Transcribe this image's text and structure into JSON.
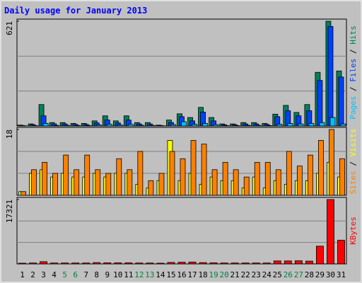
{
  "chart_data": [
    {
      "type": "bar",
      "title": "Daily usage for January 2013",
      "ylim": [
        0,
        621
      ],
      "yticks": [
        621
      ],
      "series": [
        {
          "name": "Hits",
          "color": "#00805c",
          "values": [
            5,
            12,
            127,
            20,
            20,
            15,
            15,
            30,
            60,
            30,
            60,
            20,
            20,
            5,
            35,
            72,
            50,
            110,
            50,
            12,
            12,
            20,
            20,
            15,
            70,
            122,
            80,
            127,
            318,
            621,
            326
          ]
        },
        {
          "name": "Files",
          "color": "#0040ff",
          "values": [
            3,
            8,
            60,
            12,
            12,
            9,
            9,
            18,
            35,
            18,
            35,
            12,
            12,
            3,
            20,
            55,
            30,
            82,
            30,
            7,
            7,
            12,
            12,
            9,
            55,
            90,
            60,
            90,
            270,
            590,
            290
          ]
        },
        {
          "name": "Pages",
          "color": "#00c0ff",
          "values": [
            1,
            2,
            15,
            3,
            4,
            3,
            3,
            6,
            10,
            6,
            10,
            4,
            4,
            1,
            8,
            25,
            10,
            15,
            8,
            2,
            2,
            4,
            4,
            3,
            10,
            15,
            12,
            15,
            20,
            50,
            12
          ]
        }
      ]
    },
    {
      "type": "bar",
      "ylim": [
        0,
        18
      ],
      "yticks": [
        18
      ],
      "series": [
        {
          "name": "Visits",
          "color": "#ffff00",
          "values": [
            1,
            6,
            7,
            5,
            6,
            5,
            5,
            6,
            5,
            6,
            6,
            3,
            2,
            4,
            15,
            4,
            6,
            3,
            5,
            4,
            4,
            2,
            5,
            2,
            4,
            3,
            4,
            4,
            6,
            9,
            5
          ]
        },
        {
          "name": "Sites",
          "color": "#ff8000",
          "values": [
            1,
            7,
            9,
            6,
            11,
            7,
            11,
            7,
            6,
            10,
            7,
            12,
            4,
            6,
            12,
            10,
            15,
            14,
            7,
            9,
            7,
            5,
            9,
            9,
            7,
            12,
            8,
            11,
            15,
            18,
            10
          ]
        }
      ]
    },
    {
      "type": "bar",
      "ylim": [
        0,
        17321
      ],
      "yticks": [
        17321
      ],
      "categories": [
        "1",
        "2",
        "3",
        "4",
        "5",
        "6",
        "7",
        "8",
        "9",
        "10",
        "11",
        "12",
        "13",
        "14",
        "15",
        "16",
        "17",
        "18",
        "19",
        "20",
        "21",
        "22",
        "23",
        "24",
        "25",
        "26",
        "27",
        "28",
        "29",
        "30",
        "31"
      ],
      "category_colors": [
        "#000000",
        "#000000",
        "#000000",
        "#000000",
        "#008040",
        "#008040",
        "#000000",
        "#000000",
        "#000000",
        "#000000",
        "#000000",
        "#008040",
        "#008040",
        "#000000",
        "#000000",
        "#000000",
        "#000000",
        "#000000",
        "#008040",
        "#008040",
        "#000000",
        "#000000",
        "#000000",
        "#000000",
        "#000000",
        "#008040",
        "#008040",
        "#000000",
        "#000000",
        "#000000",
        "#000000"
      ],
      "series": [
        {
          "name": "KBytes",
          "color": "#ff0000",
          "values": [
            200,
            250,
            600,
            250,
            250,
            250,
            250,
            350,
            300,
            300,
            300,
            250,
            250,
            200,
            400,
            450,
            500,
            350,
            300,
            250,
            250,
            250,
            250,
            250,
            800,
            800,
            850,
            750,
            4780,
            17321,
            6370
          ]
        }
      ]
    }
  ]
}
